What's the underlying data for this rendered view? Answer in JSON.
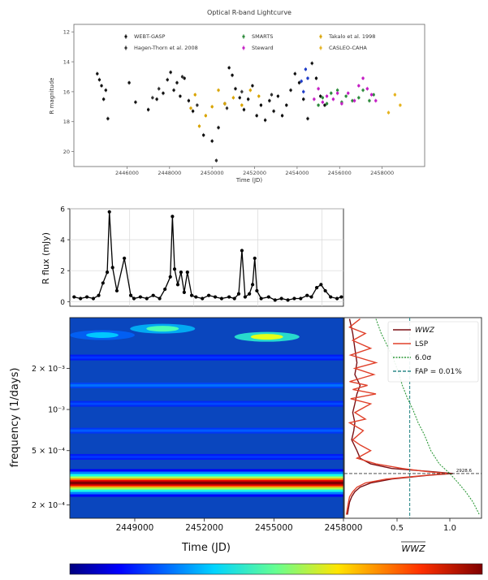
{
  "chart_data": [
    {
      "type": "scatter",
      "title": "Optical R-band Lightcurve",
      "xlabel": "Time (JD)",
      "ylabel": "R magnitude",
      "xlim": [
        2443500,
        2460000
      ],
      "ylim": [
        21,
        11.5
      ],
      "y_inverted": true,
      "xticks": [
        "2446000",
        "2448000",
        "2450000",
        "2452000",
        "2454000",
        "2456000",
        "2458000"
      ],
      "xtick_values": [
        2446000,
        2448000,
        2450000,
        2452000,
        2454000,
        2456000,
        2458000
      ],
      "yticks": [
        "12",
        "14",
        "16",
        "18",
        "20"
      ],
      "ytick_values": [
        12,
        14,
        16,
        18,
        20
      ],
      "legend_position": "top",
      "series": [
        {
          "name": "WEBT-GASP",
          "color": "#111111",
          "points": [
            [
              2444600,
              14.8
            ],
            [
              2444700,
              15.2
            ],
            [
              2444800,
              15.6
            ],
            [
              2444900,
              16.5
            ],
            [
              2445000,
              15.9
            ],
            [
              2445100,
              17.8
            ],
            [
              2446100,
              15.4
            ],
            [
              2446400,
              16.7
            ],
            [
              2447000,
              17.2
            ],
            [
              2447400,
              16.5
            ],
            [
              2447700,
              16.1
            ],
            [
              2447900,
              15.2
            ],
            [
              2448050,
              14.7
            ],
            [
              2448200,
              15.9
            ],
            [
              2448350,
              15.4
            ],
            [
              2448500,
              16.3
            ],
            [
              2448700,
              15.1
            ],
            [
              2448900,
              16.6
            ],
            [
              2449100,
              17.3
            ],
            [
              2449600,
              18.9
            ],
            [
              2450000,
              19.3
            ],
            [
              2450300,
              18.4
            ],
            [
              2450600,
              16.8
            ],
            [
              2450800,
              14.4
            ],
            [
              2450950,
              14.9
            ],
            [
              2451100,
              15.8
            ],
            [
              2451300,
              16.4
            ],
            [
              2451500,
              17.2
            ],
            [
              2451700,
              16.5
            ],
            [
              2451900,
              15.6
            ],
            [
              2452100,
              17.6
            ],
            [
              2452300,
              16.9
            ],
            [
              2452500,
              17.9
            ],
            [
              2452700,
              16.6
            ],
            [
              2452900,
              17.3
            ],
            [
              2453100,
              16.3
            ],
            [
              2453300,
              17.6
            ],
            [
              2453500,
              16.9
            ],
            [
              2453700,
              15.9
            ],
            [
              2453900,
              14.8
            ],
            [
              2454100,
              15.4
            ],
            [
              2454300,
              16.5
            ],
            [
              2454500,
              17.8
            ],
            [
              2454700,
              14.1
            ],
            [
              2454900,
              15.1
            ],
            [
              2455100,
              16.3
            ],
            [
              2455300,
              16.9
            ]
          ]
        },
        {
          "name": "Hagen-Thorn et al. 2008",
          "color": "#333333",
          "points": [
            [
              2447200,
              16.4
            ],
            [
              2447500,
              15.8
            ],
            [
              2448600,
              15.0
            ],
            [
              2449300,
              16.9
            ],
            [
              2450200,
              20.6
            ],
            [
              2450700,
              17.1
            ],
            [
              2451400,
              16.0
            ],
            [
              2452800,
              16.2
            ]
          ]
        },
        {
          "name": "SMARTS",
          "color": "#2e8b3c",
          "points": [
            [
              2455000,
              16.9
            ],
            [
              2455200,
              16.4
            ],
            [
              2455400,
              16.8
            ],
            [
              2455600,
              16.1
            ],
            [
              2455900,
              15.9
            ],
            [
              2456100,
              16.7
            ],
            [
              2456300,
              16.3
            ],
            [
              2456600,
              16.6
            ],
            [
              2456900,
              16.4
            ],
            [
              2457100,
              15.9
            ],
            [
              2457400,
              16.6
            ],
            [
              2457600,
              16.2
            ]
          ]
        },
        {
          "name": "Steward",
          "color": "#c41fc4",
          "points": [
            [
              2454800,
              16.5
            ],
            [
              2455000,
              15.8
            ],
            [
              2455200,
              16.7
            ],
            [
              2455400,
              16.3
            ],
            [
              2455700,
              16.5
            ],
            [
              2455900,
              16.1
            ],
            [
              2456100,
              16.8
            ],
            [
              2456400,
              16.1
            ],
            [
              2456700,
              16.6
            ],
            [
              2456900,
              15.6
            ],
            [
              2457100,
              15.1
            ],
            [
              2457300,
              15.8
            ],
            [
              2457500,
              16.2
            ],
            [
              2457700,
              16.6
            ]
          ]
        },
        {
          "name": "Takalo et al. 1998",
          "color": "#d9a400",
          "points": [
            [
              2449000,
              17.1
            ],
            [
              2449200,
              16.2
            ],
            [
              2449400,
              18.3
            ],
            [
              2449700,
              17.6
            ],
            [
              2450000,
              17.0
            ],
            [
              2450300,
              15.9
            ],
            [
              2450600,
              16.8
            ],
            [
              2451000,
              16.4
            ],
            [
              2451400,
              16.9
            ],
            [
              2451800,
              15.9
            ],
            [
              2452200,
              16.3
            ]
          ]
        },
        {
          "name": "CASLEO-CAHA",
          "color": "#e6b422",
          "points": [
            [
              2458300,
              17.4
            ],
            [
              2458600,
              16.2
            ],
            [
              2458850,
              16.9
            ]
          ]
        },
        {
          "name": "",
          "color": "#1e3cc8",
          "points": [
            [
              2454200,
              15.3
            ],
            [
              2454300,
              16.0
            ],
            [
              2454400,
              14.5
            ],
            [
              2454500,
              15.1
            ]
          ]
        }
      ]
    },
    {
      "type": "line",
      "xlabel": "",
      "ylabel": "R flux (mJy)",
      "xlim": [
        2446200,
        2459000
      ],
      "ylim": [
        -0.3,
        6
      ],
      "yticks": [
        "0",
        "2",
        "4",
        "6"
      ],
      "ytick_values": [
        0,
        2,
        4,
        6
      ],
      "grid": true,
      "series": [
        {
          "name": "",
          "color": "#000000",
          "x": [
            2446400,
            2446700,
            2447000,
            2447300,
            2447550,
            2447750,
            2447950,
            2448050,
            2448200,
            2448400,
            2448750,
            2449050,
            2449200,
            2449500,
            2449800,
            2450100,
            2450400,
            2450650,
            2450900,
            2451000,
            2451100,
            2451250,
            2451400,
            2451550,
            2451700,
            2451900,
            2452100,
            2452400,
            2452700,
            2453000,
            2453300,
            2453650,
            2453900,
            2454100,
            2454250,
            2454400,
            2454600,
            2454750,
            2454850,
            2454950,
            2455150,
            2455500,
            2455800,
            2456100,
            2456400,
            2456700,
            2457000,
            2457300,
            2457500,
            2457750,
            2457950,
            2458150,
            2458400,
            2458700,
            2458900
          ],
          "values": [
            0.3,
            0.2,
            0.3,
            0.2,
            0.4,
            1.2,
            1.9,
            5.8,
            2.2,
            0.7,
            2.8,
            0.4,
            0.2,
            0.3,
            0.2,
            0.4,
            0.2,
            0.8,
            1.6,
            5.5,
            2.1,
            1.1,
            1.9,
            0.6,
            1.9,
            0.4,
            0.3,
            0.2,
            0.4,
            0.3,
            0.2,
            0.3,
            0.2,
            0.5,
            3.3,
            0.3,
            0.5,
            1.1,
            2.8,
            0.7,
            0.2,
            0.3,
            0.1,
            0.2,
            0.1,
            0.2,
            0.2,
            0.4,
            0.3,
            0.9,
            1.1,
            0.7,
            0.3,
            0.2,
            0.3
          ]
        }
      ]
    },
    {
      "type": "heatmap",
      "xlabel": "Time (JD)",
      "ylabel": "frequency (1/days)",
      "xlim": [
        2446200,
        2458000
      ],
      "ylim": [
        0.00016,
        0.0047
      ],
      "y_scale": "log",
      "xticks": [
        "2449000",
        "2452000",
        "2455000",
        "2458000"
      ],
      "xtick_values": [
        2449000,
        2452000,
        2455000,
        2458000
      ],
      "yticks": [
        "2 × 10⁻³",
        "10⁻³",
        "5 × 10⁻⁴",
        "2 × 10⁻⁴"
      ],
      "ytick_values": [
        0.002,
        0.001,
        0.0005,
        0.0002
      ],
      "colormap": "jet",
      "background_color": "#0a46be",
      "bands": [
        {
          "frequency": 0.00029,
          "power": 1.0
        },
        {
          "frequency": 0.00045,
          "power": 0.18
        },
        {
          "frequency": 0.0007,
          "power": 0.22
        },
        {
          "frequency": 0.0011,
          "power": 0.2
        },
        {
          "frequency": 0.0015,
          "power": 0.24
        },
        {
          "frequency": 0.0024,
          "power": 0.18
        }
      ],
      "hotspots": [
        {
          "time": 2450200,
          "frequency": 0.0039,
          "power": 0.45
        },
        {
          "time": 2454700,
          "frequency": 0.0034,
          "power": 0.6
        },
        {
          "time": 2447600,
          "frequency": 0.0035,
          "power": 0.32
        }
      ]
    },
    {
      "type": "line",
      "xlabel": "WWZ",
      "xlim": [
        0,
        1.3
      ],
      "xticks": [
        "0.5",
        "1.0"
      ],
      "xtick_values": [
        0.5,
        1.0
      ],
      "legend_position": "top-right",
      "peak_label": "2928.6",
      "peak_frequency": 0.00034,
      "series": [
        {
          "name": "WWZ",
          "color": "#7a0f14",
          "frequency": [
            0.0046,
            0.0036,
            0.0028,
            0.0022,
            0.0018,
            0.0015,
            0.0013,
            0.0011,
            0.00095,
            0.0008,
            0.0007,
            0.0006,
            0.0005,
            0.00044,
            0.0004,
            0.00037,
            0.00035,
            0.00034,
            0.00033,
            0.00031,
            0.00029,
            0.00027,
            0.00025,
            0.00023,
            0.00021,
            0.00019,
            0.00017
          ],
          "values": [
            0.05,
            0.08,
            0.1,
            0.12,
            0.1,
            0.15,
            0.12,
            0.1,
            0.08,
            0.1,
            0.09,
            0.07,
            0.12,
            0.15,
            0.25,
            0.45,
            0.85,
            1.03,
            0.8,
            0.45,
            0.25,
            0.15,
            0.1,
            0.07,
            0.05,
            0.04,
            0.03
          ]
        },
        {
          "name": "LSP",
          "color": "#e0402a",
          "frequency": [
            0.0046,
            0.004,
            0.0036,
            0.0032,
            0.0028,
            0.0025,
            0.0022,
            0.002,
            0.0018,
            0.0016,
            0.0015,
            0.0014,
            0.0013,
            0.0012,
            0.0011,
            0.00095,
            0.00085,
            0.0008,
            0.0007,
            0.0006,
            0.00055,
            0.0005,
            0.00044,
            0.0004,
            0.00037,
            0.00035,
            0.00034,
            0.00033,
            0.00031,
            0.00029,
            0.00027,
            0.00025,
            0.00023,
            0.00021,
            0.00019,
            0.00017
          ],
          "values": [
            0.15,
            0.05,
            0.2,
            0.08,
            0.25,
            0.06,
            0.3,
            0.1,
            0.28,
            0.05,
            0.22,
            0.08,
            0.3,
            0.06,
            0.25,
            0.1,
            0.2,
            0.05,
            0.18,
            0.08,
            0.15,
            0.25,
            0.12,
            0.3,
            0.55,
            0.8,
            1.0,
            0.78,
            0.4,
            0.2,
            0.12,
            0.08,
            0.05,
            0.04,
            0.03,
            0.02
          ]
        },
        {
          "name": "6.0σ",
          "color": "#2f9a3a",
          "frequency": [
            0.0046,
            0.0036,
            0.0028,
            0.0022,
            0.0018,
            0.0015,
            0.0012,
            0.001,
            0.0008,
            0.00065,
            0.0005,
            0.0004,
            0.00034,
            0.00029,
            0.00025,
            0.00021,
            0.00017
          ],
          "values": [
            0.3,
            0.35,
            0.42,
            0.48,
            0.52,
            0.55,
            0.6,
            0.65,
            0.7,
            0.76,
            0.82,
            0.9,
            1.0,
            1.08,
            1.15,
            1.22,
            1.28
          ]
        },
        {
          "name": "FAP = 0.01%",
          "color": "#2f8a8a",
          "constant": 0.62
        }
      ]
    },
    {
      "type": "colorbar",
      "colormap": "jet"
    }
  ]
}
